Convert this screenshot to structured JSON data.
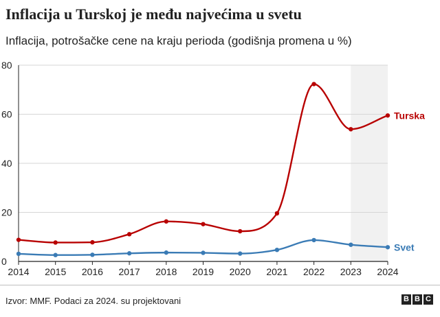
{
  "header": {
    "title": "Inflacija u Turskoj je među najvećima u svetu",
    "subtitle": "Inflacija, potrošačke cene na kraju perioda (godišnja promena u %)"
  },
  "footer": {
    "source": "Izvor: MMF. Podaci za 2024. su projektovani",
    "logo_letters": [
      "B",
      "B",
      "C"
    ]
  },
  "chart_data": {
    "type": "line",
    "x": [
      2014,
      2015,
      2016,
      2017,
      2018,
      2019,
      2020,
      2021,
      2022,
      2023,
      2024
    ],
    "xlabel": "",
    "ylabel": "",
    "ylim": [
      0,
      80
    ],
    "yticks": [
      0,
      20,
      40,
      60,
      80
    ],
    "projected_from": 2023,
    "grid": "horizontal",
    "series": [
      {
        "name": "Turska",
        "color": "#b80000",
        "values": [
          8.8,
          7.7,
          7.8,
          11.1,
          16.3,
          15.2,
          12.3,
          19.6,
          72.3,
          53.9,
          59.5
        ]
      },
      {
        "name": "Svet",
        "color": "#3a7bb5",
        "values": [
          3.1,
          2.6,
          2.7,
          3.3,
          3.6,
          3.5,
          3.2,
          4.7,
          8.7,
          6.8,
          5.8
        ]
      }
    ]
  }
}
